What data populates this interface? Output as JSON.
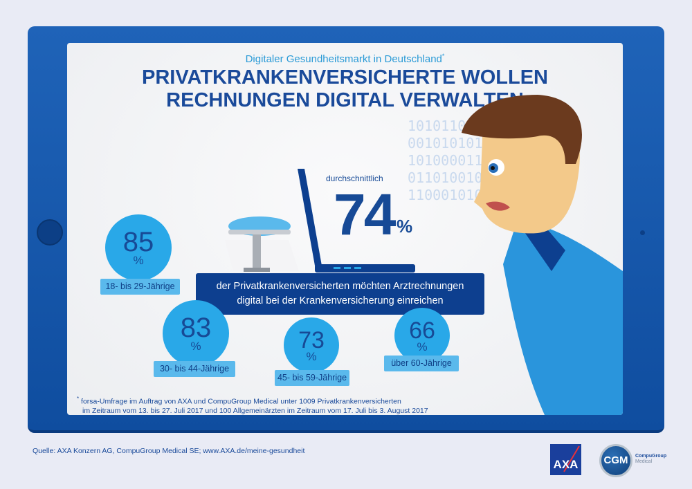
{
  "subtitle": "Digitaler Gesundheitsmarkt in Deutschland",
  "subtitle_mark": "*",
  "title_line1": "PRIVATKRANKENVERSICHERTE WOLLEN",
  "title_line2": "RECHNUNGEN DIGITAL VERWALTEN",
  "average": {
    "label": "durchschnittlich",
    "value": "74",
    "unit": "%"
  },
  "statement_line1": "der Privatkrankenversicherten möchten Arztrechnungen",
  "statement_line2": "digital bei der Krankenversicherung einreichen",
  "groups": [
    {
      "value": "85",
      "unit": "%",
      "label": "18- bis 29-Jährige"
    },
    {
      "value": "83",
      "unit": "%",
      "label": "30- bis 44-Jährige"
    },
    {
      "value": "73",
      "unit": "%",
      "label": "45- bis 59-Jährige"
    },
    {
      "value": "66",
      "unit": "%",
      "label": "über 60-Jährige"
    }
  ],
  "binary_text": [
    "101011000",
    "0010101011",
    "10100001100",
    "0110100100",
    "11000101011"
  ],
  "footnote_mark": "*",
  "footnote_line1": "forsa-Umfrage im Auftrag von AXA und CompuGroup Medical unter 1009 Privatkrankenversicherten",
  "footnote_line2": "im Zeitraum vom 13. bis 27. Juli 2017 und 100 Allgemeinärzten im Zeitraum vom 17. Juli bis 3. August 2017",
  "source": "Quelle:  AXA Konzern AG, CompuGroup Medical SE; www.AXA.de/meine-gesundheit",
  "logos": {
    "axa": "AXA",
    "cgm": "CGM",
    "cgm_text1": "CompuGroup",
    "cgm_text2": "Medical"
  },
  "colors": {
    "frame": "#1f63b8",
    "title": "#1a4a9a",
    "accent": "#29a8e8",
    "box": "#0d3f8f"
  }
}
